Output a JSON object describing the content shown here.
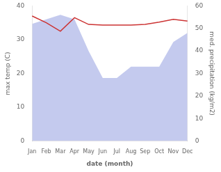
{
  "chart_data": {
    "type": "line",
    "categories": [
      "Jan",
      "Feb",
      "Mar",
      "Apr",
      "May",
      "Jun",
      "Jul",
      "Aug",
      "Sep",
      "Oct",
      "Nov",
      "Dec"
    ],
    "series": [
      {
        "type": "line",
        "color": "#cc3333",
        "values": [
          37.0,
          35.0,
          32.5,
          36.5,
          34.5,
          34.3,
          34.3,
          34.3,
          34.5,
          35.2,
          36.0,
          35.5
        ]
      },
      {
        "type": "area",
        "color": "#b0b8e8",
        "axis": "y2",
        "values": [
          52,
          54,
          56,
          54,
          40,
          28,
          28,
          33,
          33,
          33,
          44,
          48
        ]
      }
    ],
    "xlabel": "date (month)",
    "ylabel": "max temp (C)",
    "y2label": "med. precipitation (kg/m2)",
    "ylim": [
      0,
      40
    ],
    "yticks": [
      0,
      10,
      20,
      30,
      40
    ],
    "y2lim": [
      0,
      60
    ],
    "y2ticks": [
      0,
      10,
      20,
      30,
      40,
      50,
      60
    ],
    "grid": false
  }
}
